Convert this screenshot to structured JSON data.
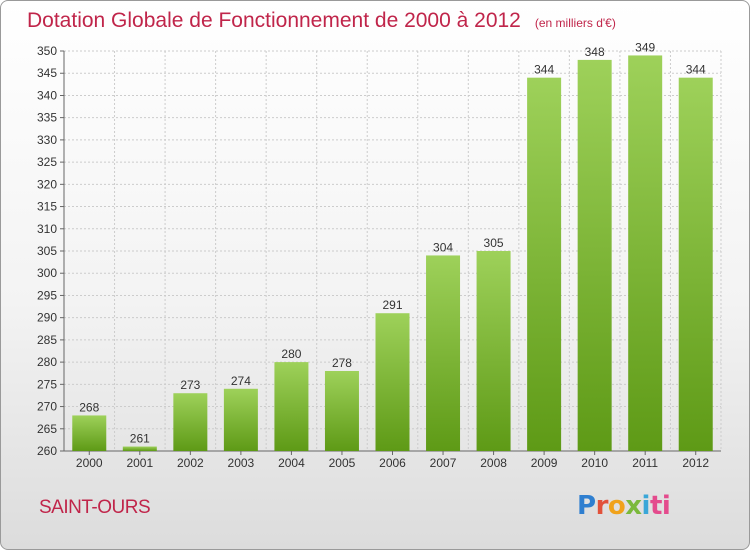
{
  "header": {
    "title": "Dotation Globale de Fonctionnement de 2000 à 2012",
    "unit": "(en milliers d'€)"
  },
  "footer": {
    "commune": "SAINT-OURS",
    "logo_parts": [
      "P",
      "r",
      "o",
      "x",
      "i",
      "ti"
    ]
  },
  "colors": {
    "title": "#c0254a",
    "bar_top": "#9ed15a",
    "bar_bottom": "#5e9a16",
    "grid": "#cccccc"
  },
  "chart_data": {
    "type": "bar",
    "title": "Dotation Globale de Fonctionnement de 2000 à 2012",
    "subtitle": "(en milliers d'€)",
    "categories": [
      "2000",
      "2001",
      "2002",
      "2003",
      "2004",
      "2005",
      "2006",
      "2007",
      "2008",
      "2009",
      "2010",
      "2011",
      "2012"
    ],
    "values": [
      268,
      261,
      273,
      274,
      280,
      278,
      291,
      304,
      305,
      344,
      348,
      349,
      344
    ],
    "ylim": [
      260,
      350
    ],
    "ytick_step": 5,
    "grid": true,
    "xlabel": "",
    "ylabel": ""
  }
}
